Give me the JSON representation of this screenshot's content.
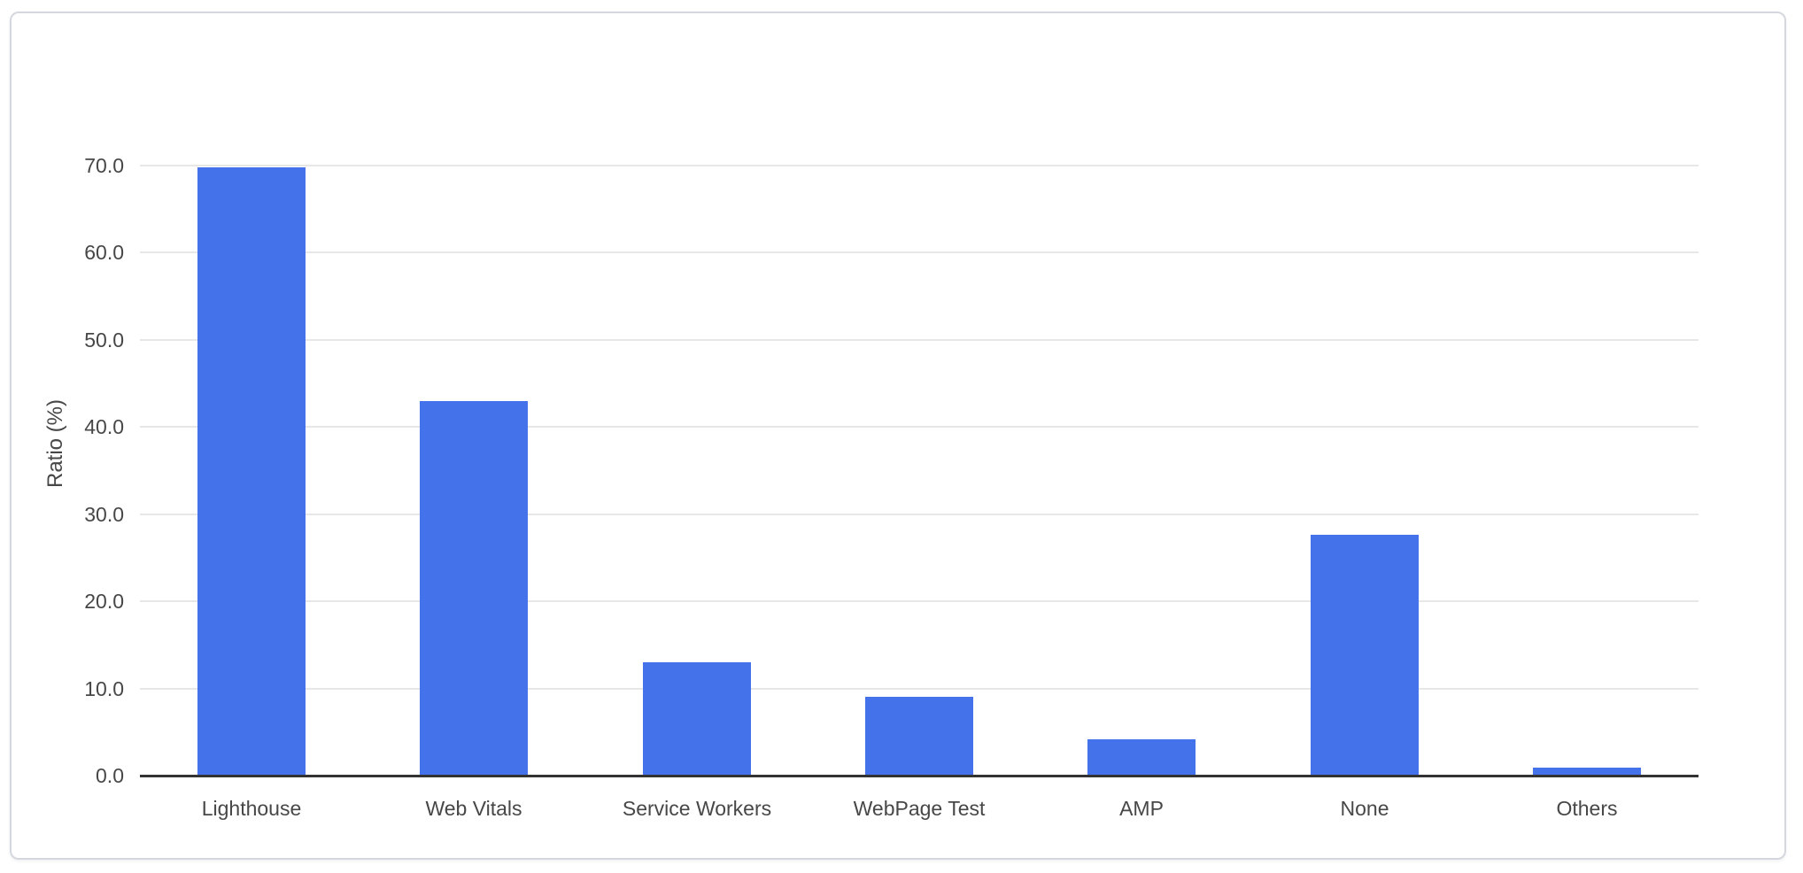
{
  "page": {
    "background": "#ffffff"
  },
  "card": {
    "background": "#ffffff",
    "border_color": "#d4d8de"
  },
  "chart_data": {
    "type": "bar",
    "title": "",
    "categories": [
      "Lighthouse",
      "Web Vitals",
      "Service Workers",
      "WebPage Test",
      "AMP",
      "None",
      "Others"
    ],
    "values": [
      69.8,
      43.0,
      13.0,
      9.0,
      4.2,
      27.6,
      0.9
    ],
    "xlabel": "",
    "ylabel": "Ratio (%)",
    "ylim": [
      0,
      70
    ],
    "ytick_interval": 10,
    "ytick_labels": [
      "0.0",
      "10.0",
      "20.0",
      "30.0",
      "40.0",
      "50.0",
      "60.0",
      "70.0"
    ],
    "grid": true,
    "legend_position": "none",
    "colors": {
      "bar": "#4472EA",
      "gridline": "#e7e7e7",
      "axis_line": "#333333",
      "text": "#474747"
    }
  }
}
